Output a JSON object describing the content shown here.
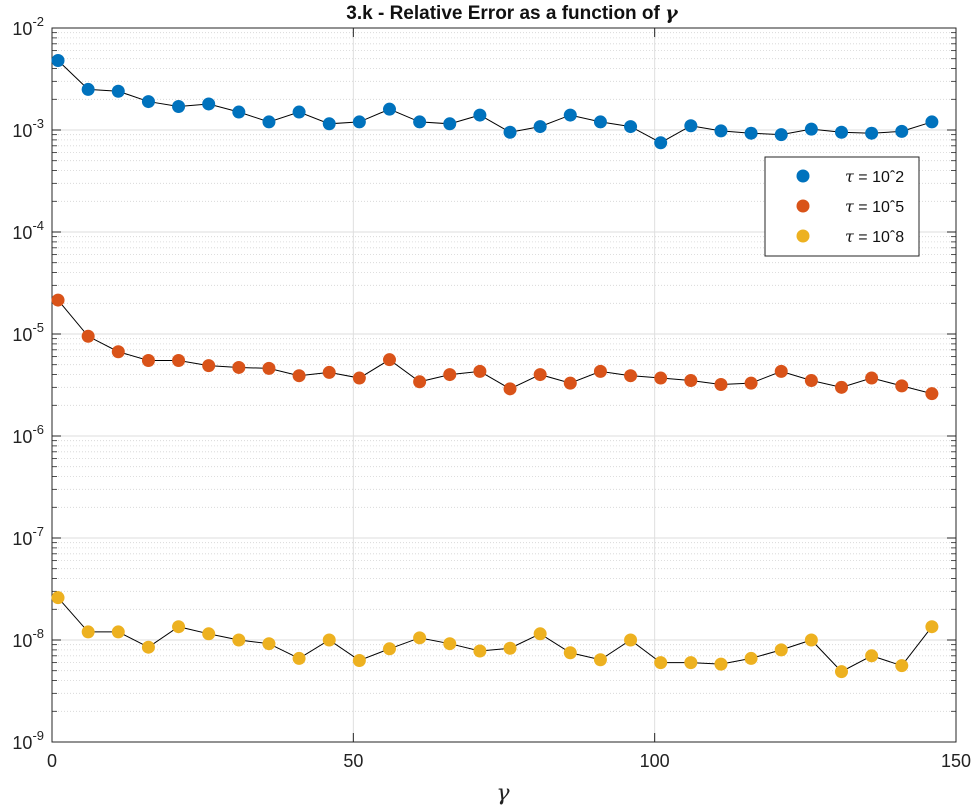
{
  "chart_data": {
    "type": "scatter",
    "title": "3.k - Relative Error as a function of",
    "title_symbol": "γ",
    "xlabel": "γ",
    "ylabel": "",
    "xlim": [
      0,
      150
    ],
    "ylim": [
      1e-09,
      0.01
    ],
    "yscale": "log",
    "grid": true,
    "minor_grid": true,
    "legend_position": "upper-right",
    "x_ticks": [
      "0",
      "50",
      "100",
      "150"
    ],
    "y_ticks": [
      {
        "base": "10",
        "exp": "-9"
      },
      {
        "base": "10",
        "exp": "-8"
      },
      {
        "base": "10",
        "exp": "-7"
      },
      {
        "base": "10",
        "exp": "-6"
      },
      {
        "base": "10",
        "exp": "-5"
      },
      {
        "base": "10",
        "exp": "-4"
      },
      {
        "base": "10",
        "exp": "-3"
      },
      {
        "base": "10",
        "exp": "-2"
      }
    ],
    "x": [
      1,
      6,
      11,
      16,
      21,
      26,
      31,
      36,
      41,
      46,
      51,
      56,
      61,
      66,
      71,
      76,
      81,
      86,
      91,
      96,
      101,
      106,
      111,
      116,
      121,
      126,
      131,
      136,
      141,
      146
    ],
    "series": [
      {
        "name": "τ = 10ˆ2",
        "legend_symbol": "τ",
        "legend_rest": " = 10ˆ2",
        "color": "#0072BD",
        "values": [
          0.0048,
          0.0025,
          0.0024,
          0.0019,
          0.0017,
          0.0018,
          0.0015,
          0.0012,
          0.0015,
          0.00115,
          0.0012,
          0.0016,
          0.0012,
          0.00115,
          0.0014,
          0.00095,
          0.00108,
          0.0014,
          0.0012,
          0.00108,
          0.00075,
          0.0011,
          0.00098,
          0.00093,
          0.0009,
          0.00102,
          0.00095,
          0.00093,
          0.00097,
          0.0012
        ]
      },
      {
        "name": "τ = 10ˆ5",
        "legend_symbol": "τ",
        "legend_rest": " = 10ˆ5",
        "color": "#D95319",
        "values": [
          2.15e-05,
          9.5e-06,
          6.7e-06,
          5.5e-06,
          5.5e-06,
          4.9e-06,
          4.7e-06,
          4.6e-06,
          3.9e-06,
          4.2e-06,
          3.7e-06,
          5.6e-06,
          3.4e-06,
          4e-06,
          4.3e-06,
          2.9e-06,
          4e-06,
          3.3e-06,
          4.3e-06,
          3.9e-06,
          3.7e-06,
          3.5e-06,
          3.2e-06,
          3.3e-06,
          4.3e-06,
          3.5e-06,
          3e-06,
          3.7e-06,
          3.1e-06,
          2.6e-06
        ]
      },
      {
        "name": "τ = 10ˆ8",
        "legend_symbol": "τ",
        "legend_rest": " = 10ˆ8",
        "color": "#EDB120",
        "values": [
          2.6e-08,
          1.2e-08,
          1.2e-08,
          8.5e-09,
          1.35e-08,
          1.15e-08,
          1e-08,
          9.2e-09,
          6.6e-09,
          1e-08,
          6.3e-09,
          8.2e-09,
          1.05e-08,
          9.2e-09,
          7.8e-09,
          8.3e-09,
          1.15e-08,
          7.5e-09,
          6.4e-09,
          1e-08,
          6e-09,
          6e-09,
          5.8e-09,
          6.6e-09,
          8e-09,
          1e-08,
          4.9e-09,
          7e-09,
          5.6e-09,
          1.35e-08
        ]
      }
    ]
  }
}
